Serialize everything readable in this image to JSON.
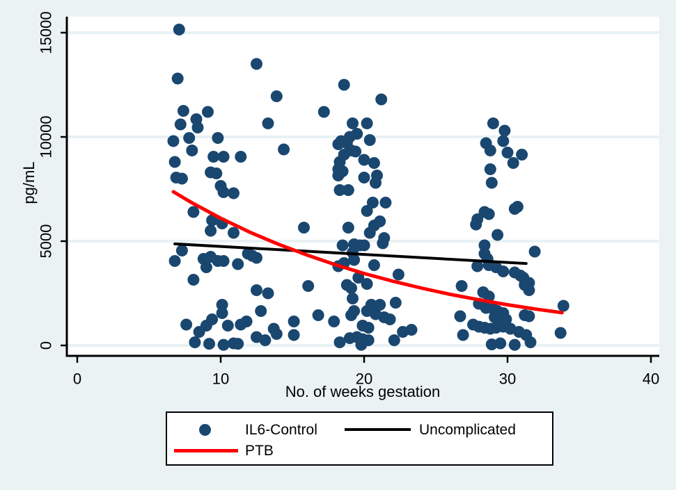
{
  "figure": {
    "bg_color": "#eaf2f3",
    "plot_bg": "#ffffff",
    "grid_color": "#e8f1f3",
    "axis_color": "#000000"
  },
  "legend": {
    "items": [
      {
        "label": "IL6-Control",
        "marker": "dot",
        "color": "#1a476f"
      },
      {
        "label": "Uncomplicated",
        "marker": "line",
        "color": "#000000"
      },
      {
        "label": "PTB",
        "marker": "line",
        "color": "#fe0000"
      }
    ]
  },
  "chart_data": {
    "type": "scatter",
    "title": "",
    "xlabel": "No. of weeks gestation",
    "ylabel": "pg/mL",
    "xlim": [
      0,
      40
    ],
    "ylim": [
      0,
      15000
    ],
    "xticks": [
      0,
      10,
      20,
      30,
      40
    ],
    "xtick_labels": [
      "0",
      "10",
      "20",
      "30",
      "40"
    ],
    "yticks": [
      0,
      5000,
      10000,
      15000
    ],
    "ytick_labels": [
      "0",
      "5000",
      "10000",
      "15000"
    ],
    "grid": "horizontal",
    "legend_position": "bottom",
    "series": [
      {
        "name": "IL6-Control",
        "type": "scatter",
        "color": "#1a476f",
        "marker_radius": 8.5,
        "points": [
          [
            7.1,
            15150
          ],
          [
            7.0,
            12800
          ],
          [
            12.5,
            13500
          ],
          [
            13.9,
            11950
          ],
          [
            7.4,
            11250
          ],
          [
            9.1,
            11200
          ],
          [
            8.3,
            10850
          ],
          [
            7.2,
            10600
          ],
          [
            8.4,
            10450
          ],
          [
            13.3,
            10650
          ],
          [
            7.8,
            9950
          ],
          [
            6.7,
            9800
          ],
          [
            9.8,
            9950
          ],
          [
            8.0,
            9350
          ],
          [
            14.4,
            9400
          ],
          [
            6.8,
            8800
          ],
          [
            9.5,
            9050
          ],
          [
            10.2,
            9050
          ],
          [
            11.4,
            9050
          ],
          [
            9.3,
            8300
          ],
          [
            9.7,
            8250
          ],
          [
            6.9,
            8050
          ],
          [
            7.3,
            8000
          ],
          [
            10.0,
            7650
          ],
          [
            10.2,
            7350
          ],
          [
            10.9,
            7300
          ],
          [
            8.1,
            6400
          ],
          [
            9.4,
            6000
          ],
          [
            10.1,
            5850
          ],
          [
            9.3,
            5500
          ],
          [
            10.9,
            5400
          ],
          [
            7.3,
            4550
          ],
          [
            6.8,
            4050
          ],
          [
            9.3,
            4250
          ],
          [
            9.8,
            4050
          ],
          [
            10.2,
            4050
          ],
          [
            8.8,
            4150
          ],
          [
            9.0,
            3750
          ],
          [
            11.2,
            3900
          ],
          [
            11.9,
            4400
          ],
          [
            12.2,
            4300
          ],
          [
            12.5,
            4200
          ],
          [
            8.1,
            3150
          ],
          [
            12.5,
            2650
          ],
          [
            13.3,
            2500
          ],
          [
            10.1,
            1950
          ],
          [
            10.1,
            1550
          ],
          [
            12.8,
            1650
          ],
          [
            7.6,
            1000
          ],
          [
            9.4,
            1250
          ],
          [
            9.0,
            950
          ],
          [
            8.5,
            650
          ],
          [
            10.5,
            950
          ],
          [
            11.4,
            1000
          ],
          [
            11.8,
            1150
          ],
          [
            12.5,
            400
          ],
          [
            13.1,
            250
          ],
          [
            13.7,
            800
          ],
          [
            13.9,
            550
          ],
          [
            8.2,
            150
          ],
          [
            9.2,
            80
          ],
          [
            10.2,
            30
          ],
          [
            10.9,
            100
          ],
          [
            11.2,
            80
          ],
          [
            18.6,
            12500
          ],
          [
            21.2,
            11800
          ],
          [
            17.2,
            11200
          ],
          [
            19.2,
            10650
          ],
          [
            20.2,
            10650
          ],
          [
            19.5,
            10150
          ],
          [
            19.0,
            10000
          ],
          [
            18.4,
            9800
          ],
          [
            18.2,
            9650
          ],
          [
            20.4,
            9850
          ],
          [
            18.8,
            9700
          ],
          [
            19.1,
            9350
          ],
          [
            19.4,
            9300
          ],
          [
            18.6,
            9150
          ],
          [
            20.0,
            8900
          ],
          [
            20.7,
            8750
          ],
          [
            18.3,
            8800
          ],
          [
            18.2,
            8450
          ],
          [
            18.5,
            8350
          ],
          [
            18.2,
            8150
          ],
          [
            20.0,
            8050
          ],
          [
            20.9,
            8150
          ],
          [
            20.8,
            7800
          ],
          [
            18.3,
            7450
          ],
          [
            18.9,
            7450
          ],
          [
            20.6,
            6850
          ],
          [
            21.5,
            6850
          ],
          [
            20.2,
            6450
          ],
          [
            21.1,
            5950
          ],
          [
            21.4,
            5150
          ],
          [
            15.8,
            5650
          ],
          [
            18.9,
            5650
          ],
          [
            20.7,
            5750
          ],
          [
            20.4,
            5400
          ],
          [
            21.3,
            4900
          ],
          [
            18.5,
            4800
          ],
          [
            19.3,
            4850
          ],
          [
            19.7,
            4800
          ],
          [
            20.0,
            4800
          ],
          [
            19.2,
            4450
          ],
          [
            19.3,
            4100
          ],
          [
            18.2,
            3800
          ],
          [
            18.6,
            3950
          ],
          [
            20.7,
            3850
          ],
          [
            19.6,
            3250
          ],
          [
            20.2,
            2950
          ],
          [
            16.1,
            2850
          ],
          [
            22.4,
            3400
          ],
          [
            18.8,
            2900
          ],
          [
            19.1,
            2750
          ],
          [
            19.2,
            2250
          ],
          [
            20.5,
            1950
          ],
          [
            21.1,
            1950
          ],
          [
            22.2,
            2050
          ],
          [
            19.3,
            1650
          ],
          [
            19.1,
            1450
          ],
          [
            20.2,
            1650
          ],
          [
            20.8,
            1500
          ],
          [
            21.4,
            1350
          ],
          [
            21.8,
            1250
          ],
          [
            16.8,
            1450
          ],
          [
            15.1,
            1150
          ],
          [
            17.9,
            1150
          ],
          [
            19.9,
            950
          ],
          [
            20.3,
            850
          ],
          [
            22.7,
            650
          ],
          [
            23.3,
            750
          ],
          [
            15.1,
            500
          ],
          [
            19.0,
            350
          ],
          [
            19.5,
            400
          ],
          [
            19.9,
            300
          ],
          [
            20.3,
            250
          ],
          [
            18.3,
            150
          ],
          [
            22.1,
            250
          ],
          [
            19.8,
            30
          ],
          [
            29.0,
            10650
          ],
          [
            29.8,
            10300
          ],
          [
            29.7,
            9800
          ],
          [
            28.5,
            9700
          ],
          [
            28.8,
            9350
          ],
          [
            30.0,
            9250
          ],
          [
            31.0,
            9150
          ],
          [
            30.4,
            8750
          ],
          [
            28.8,
            8450
          ],
          [
            28.9,
            7800
          ],
          [
            30.7,
            6650
          ],
          [
            28.4,
            6400
          ],
          [
            28.7,
            6300
          ],
          [
            27.9,
            6050
          ],
          [
            30.5,
            6550
          ],
          [
            27.8,
            5800
          ],
          [
            29.3,
            5300
          ],
          [
            28.4,
            4800
          ],
          [
            28.4,
            4400
          ],
          [
            28.6,
            4150
          ],
          [
            31.9,
            4500
          ],
          [
            27.9,
            3800
          ],
          [
            28.7,
            3850
          ],
          [
            29.2,
            3750
          ],
          [
            29.7,
            3550
          ],
          [
            30.5,
            3500
          ],
          [
            30.9,
            3350
          ],
          [
            31.1,
            3250
          ],
          [
            31.2,
            2900
          ],
          [
            31.5,
            3000
          ],
          [
            31.5,
            2650
          ],
          [
            26.8,
            2850
          ],
          [
            28.3,
            2550
          ],
          [
            28.7,
            2350
          ],
          [
            28.0,
            2000
          ],
          [
            28.5,
            1800
          ],
          [
            29.0,
            1750
          ],
          [
            29.3,
            1650
          ],
          [
            29.7,
            1550
          ],
          [
            26.7,
            1400
          ],
          [
            26.9,
            500
          ],
          [
            29.1,
            1350
          ],
          [
            29.5,
            1300
          ],
          [
            29.9,
            1250
          ],
          [
            31.2,
            1450
          ],
          [
            31.5,
            1400
          ],
          [
            27.6,
            1000
          ],
          [
            28.0,
            900
          ],
          [
            28.4,
            850
          ],
          [
            28.8,
            800
          ],
          [
            29.2,
            850
          ],
          [
            29.7,
            900
          ],
          [
            30.2,
            800
          ],
          [
            30.8,
            650
          ],
          [
            31.3,
            500
          ],
          [
            31.6,
            150
          ],
          [
            33.9,
            1900
          ],
          [
            33.7,
            600
          ],
          [
            28.9,
            50
          ],
          [
            29.5,
            100
          ],
          [
            30.5,
            30
          ]
        ]
      },
      {
        "name": "Uncomplicated",
        "type": "line",
        "color": "#000000",
        "width": 4,
        "points": [
          [
            6.8,
            4870
          ],
          [
            31.3,
            3930
          ]
        ]
      },
      {
        "name": "PTB",
        "type": "line",
        "color": "#fe0000",
        "width": 5,
        "points": [
          [
            6.7,
            7370
          ],
          [
            8,
            6840
          ],
          [
            10,
            6100
          ],
          [
            12,
            5440
          ],
          [
            14,
            4860
          ],
          [
            16,
            4340
          ],
          [
            18,
            3870
          ],
          [
            20,
            3450
          ],
          [
            22,
            3080
          ],
          [
            24,
            2750
          ],
          [
            26,
            2450
          ],
          [
            28,
            2190
          ],
          [
            30,
            1950
          ],
          [
            32,
            1740
          ],
          [
            33.8,
            1570
          ]
        ]
      }
    ]
  }
}
